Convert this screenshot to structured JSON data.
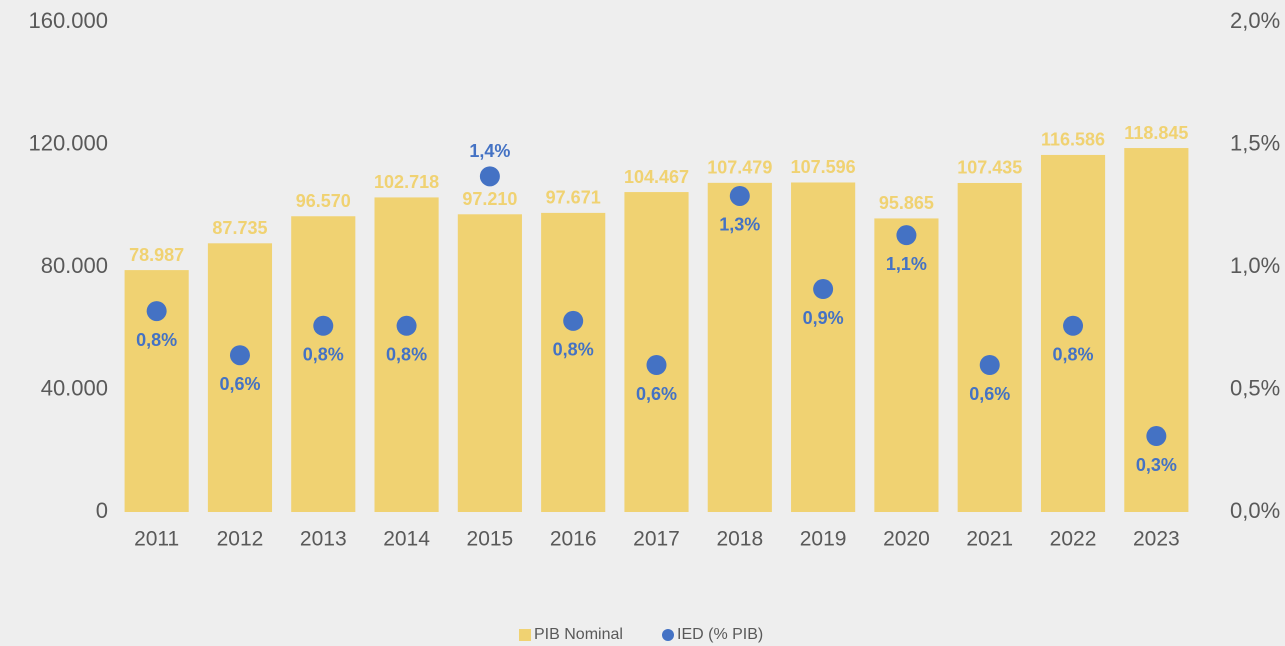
{
  "chart_data": {
    "type": "bar",
    "categories": [
      "2011",
      "2012",
      "2013",
      "2014",
      "2015",
      "2016",
      "2017",
      "2018",
      "2019",
      "2020",
      "2021",
      "2022",
      "2023"
    ],
    "series": [
      {
        "name": "PIB Nominal",
        "type": "bar",
        "color": "#f0d272",
        "values": [
          78987,
          87735,
          96570,
          102718,
          97210,
          97671,
          104467,
          107479,
          107596,
          95865,
          107435,
          116586,
          118845
        ],
        "value_labels": [
          "78.987",
          "87.735",
          "96.570",
          "102.718",
          "97.210",
          "97.671",
          "104.467",
          "107.479",
          "107.596",
          "95.865",
          "107.435",
          "116.586",
          "118.845"
        ]
      },
      {
        "name": "IED (% PIB)",
        "type": "scatter",
        "axis": "y2",
        "color": "#4472c4",
        "values": [
          0.82,
          0.64,
          0.76,
          0.76,
          1.37,
          0.78,
          0.6,
          1.29,
          0.91,
          1.13,
          0.6,
          0.76,
          0.31
        ],
        "value_labels": [
          "0,8%",
          "0,6%",
          "0,8%",
          "0,8%",
          "1,4%",
          "0,8%",
          "0,6%",
          "1,3%",
          "0,9%",
          "1,1%",
          "0,6%",
          "0,8%",
          "0,3%"
        ]
      }
    ],
    "ylim": [
      0,
      160000
    ],
    "yticks": [
      0,
      {
        "value": 40000,
        "label": "40.000"
      },
      {
        "value": 80000,
        "label": "80.000"
      },
      {
        "value": 120000,
        "label": "120.000"
      },
      {
        "value": 160000,
        "label": "160.000"
      }
    ],
    "y2lim": [
      0,
      2
    ],
    "y2ticks": [
      {
        "value": 0,
        "label": "0,0%"
      },
      {
        "value": 0.5,
        "label": "0,5%"
      },
      {
        "value": 1,
        "label": "1,0%"
      },
      {
        "value": 1.5,
        "label": "1,5%"
      },
      {
        "value": 2,
        "label": "2,0%"
      }
    ],
    "legend": "bottom"
  }
}
